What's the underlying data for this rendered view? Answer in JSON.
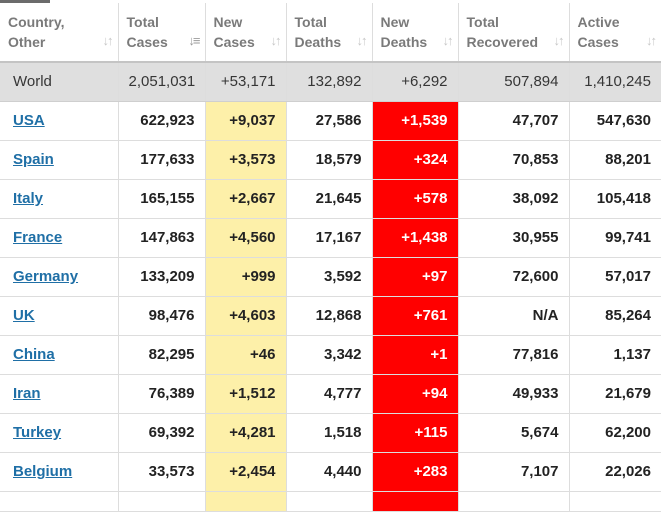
{
  "headers": [
    {
      "line1": "Country,",
      "line2": "Other",
      "sort_icon": "sort-both-icon"
    },
    {
      "line1": "Total",
      "line2": "Cases",
      "sort_icon": "sort-desc-icon"
    },
    {
      "line1": "New",
      "line2": "Cases",
      "sort_icon": "sort-both-icon"
    },
    {
      "line1": "Total",
      "line2": "Deaths",
      "sort_icon": "sort-both-icon"
    },
    {
      "line1": "New",
      "line2": "Deaths",
      "sort_icon": "sort-both-icon"
    },
    {
      "line1": "Total",
      "line2": "Recovered",
      "sort_icon": "sort-both-icon"
    },
    {
      "line1": "Active",
      "line2": "Cases",
      "sort_icon": "sort-both-icon"
    }
  ],
  "world": {
    "country": "World",
    "total_cases": "2,051,031",
    "new_cases": "+53,171",
    "total_deaths": "132,892",
    "new_deaths": "+6,292",
    "total_recovered": "507,894",
    "active_cases": "1,410,245"
  },
  "rows": [
    {
      "country": "USA",
      "total_cases": "622,923",
      "new_cases": "+9,037",
      "total_deaths": "27,586",
      "new_deaths": "+1,539",
      "total_recovered": "47,707",
      "active_cases": "547,630"
    },
    {
      "country": "Spain",
      "total_cases": "177,633",
      "new_cases": "+3,573",
      "total_deaths": "18,579",
      "new_deaths": "+324",
      "total_recovered": "70,853",
      "active_cases": "88,201"
    },
    {
      "country": "Italy",
      "total_cases": "165,155",
      "new_cases": "+2,667",
      "total_deaths": "21,645",
      "new_deaths": "+578",
      "total_recovered": "38,092",
      "active_cases": "105,418"
    },
    {
      "country": "France",
      "total_cases": "147,863",
      "new_cases": "+4,560",
      "total_deaths": "17,167",
      "new_deaths": "+1,438",
      "total_recovered": "30,955",
      "active_cases": "99,741"
    },
    {
      "country": "Germany",
      "total_cases": "133,209",
      "new_cases": "+999",
      "total_deaths": "3,592",
      "new_deaths": "+97",
      "total_recovered": "72,600",
      "active_cases": "57,017"
    },
    {
      "country": "UK",
      "total_cases": "98,476",
      "new_cases": "+4,603",
      "total_deaths": "12,868",
      "new_deaths": "+761",
      "total_recovered": "N/A",
      "active_cases": "85,264"
    },
    {
      "country": "China",
      "total_cases": "82,295",
      "new_cases": "+46",
      "total_deaths": "3,342",
      "new_deaths": "+1",
      "total_recovered": "77,816",
      "active_cases": "1,137"
    },
    {
      "country": "Iran",
      "total_cases": "76,389",
      "new_cases": "+1,512",
      "total_deaths": "4,777",
      "new_deaths": "+94",
      "total_recovered": "49,933",
      "active_cases": "21,679"
    },
    {
      "country": "Turkey",
      "total_cases": "69,392",
      "new_cases": "+4,281",
      "total_deaths": "1,518",
      "new_deaths": "+115",
      "total_recovered": "5,674",
      "active_cases": "62,200"
    },
    {
      "country": "Belgium",
      "total_cases": "33,573",
      "new_cases": "+2,454",
      "total_deaths": "4,440",
      "new_deaths": "+283",
      "total_recovered": "7,107",
      "active_cases": "22,026"
    }
  ],
  "colors": {
    "new_cases_bg": "#fdf0a9",
    "new_deaths_bg": "#ff0000",
    "world_row_bg": "#dfdfdf",
    "link": "#1f6fa6"
  }
}
